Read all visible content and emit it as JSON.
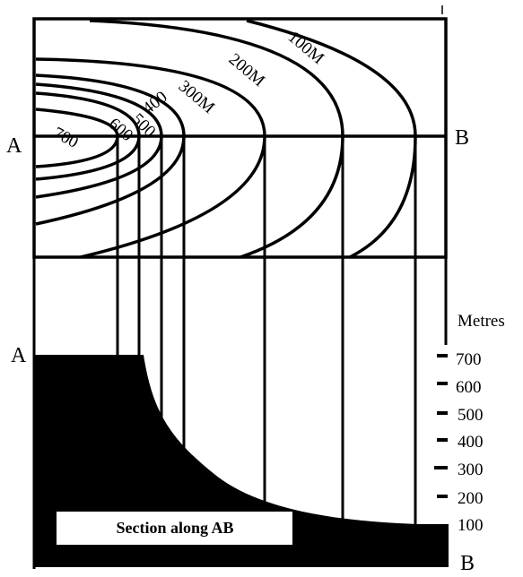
{
  "point_a": "A",
  "point_b": "B",
  "contour_labels": {
    "c700": "700",
    "c600": "600",
    "c500": "500",
    "c400": "400",
    "c300": "300M",
    "c200": "200M",
    "c100": "100M"
  },
  "scale": {
    "unit": "Metres",
    "ticks": [
      "700",
      "600",
      "500",
      "400",
      "300",
      "200",
      "100"
    ]
  },
  "section_title": "Section along AB",
  "colors": {
    "ink": "#000000",
    "paper": "#ffffff"
  }
}
